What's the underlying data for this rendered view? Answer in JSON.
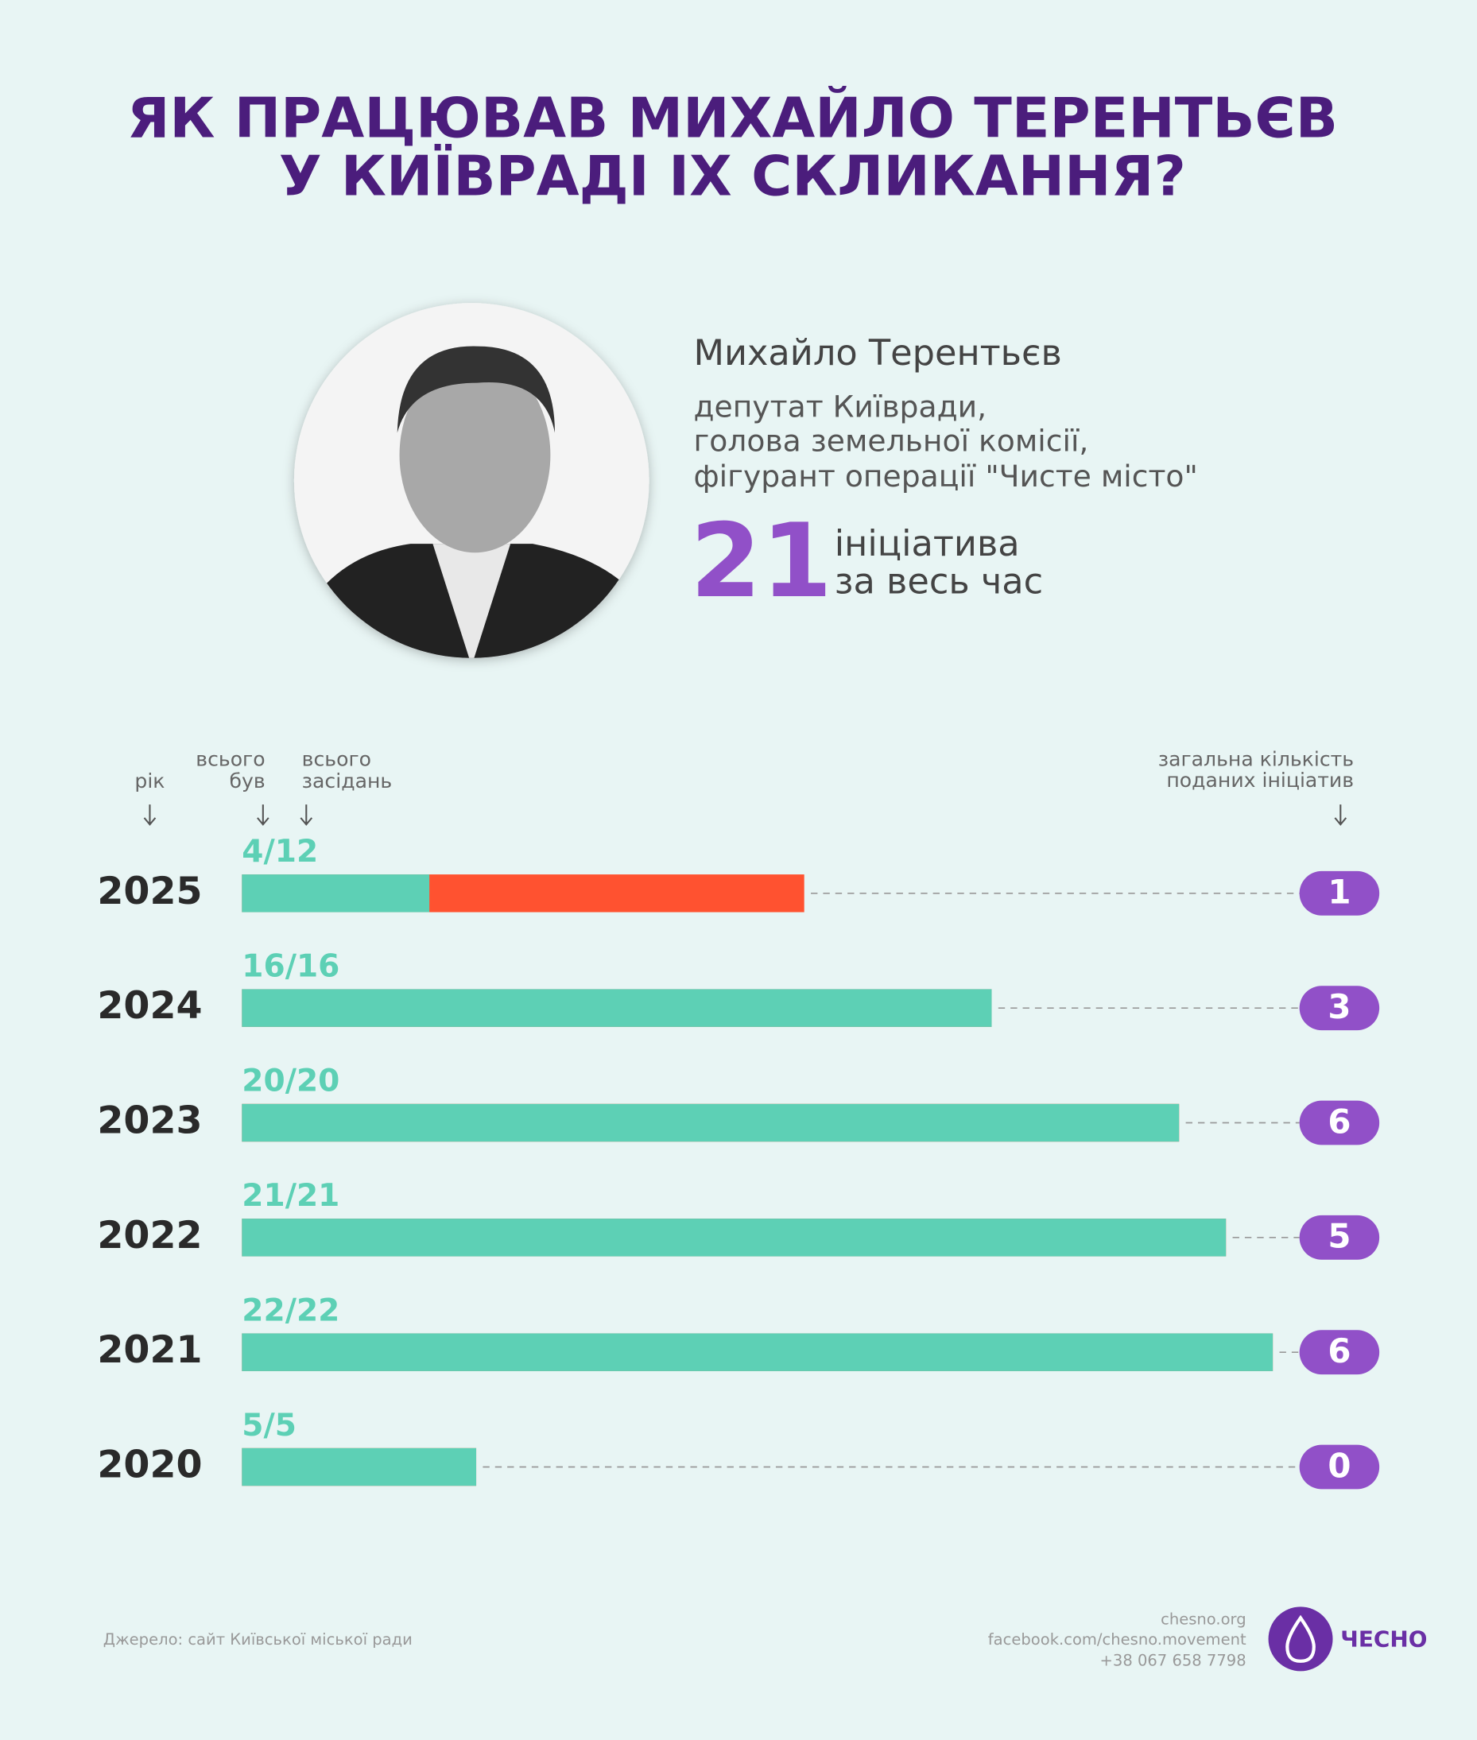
{
  "title": [
    "ЯК ПРАЦЮВАВ МИХАЙЛО ТЕРЕНТЬЄВ",
    "У КИЇВРАДІ IX СКЛИКАННЯ?"
  ],
  "profile": {
    "name": "Михайло Терентьєв",
    "description": [
      "депутат Київради,",
      "голова земельної комісії,",
      "фігурант операції \"Чисте місто\""
    ],
    "total_initiatives": 21,
    "total_caption": [
      "ініціатива",
      "за весь час"
    ]
  },
  "chart_data": {
    "type": "bar",
    "column_labels": {
      "year": [
        "рік"
      ],
      "attended": [
        "всього",
        "був"
      ],
      "total": [
        "всього",
        "засідань"
      ],
      "initiatives": [
        "загальна кількість",
        "поданих ініціатив"
      ]
    },
    "categories": [
      "2025",
      "2024",
      "2023",
      "2022",
      "2021",
      "2020"
    ],
    "attended": [
      4,
      16,
      20,
      21,
      22,
      5
    ],
    "total": [
      12,
      16,
      20,
      21,
      22,
      5
    ],
    "value_labels": [
      "4/12",
      "16/16",
      "20/20",
      "21/21",
      "22/22",
      "5/5"
    ],
    "initiatives": [
      1,
      3,
      6,
      5,
      6,
      0
    ],
    "attended_color": "#5dd0b5",
    "missed_color": "#ff5230",
    "initiatives_color": "#9150c8"
  },
  "footer": {
    "source": "Джерело: сайт Київської міської ради",
    "contacts": [
      "chesno.org",
      "facebook.com/chesno.movement",
      "+38 067 658 7798"
    ],
    "logo": "ЧЕСНО"
  }
}
